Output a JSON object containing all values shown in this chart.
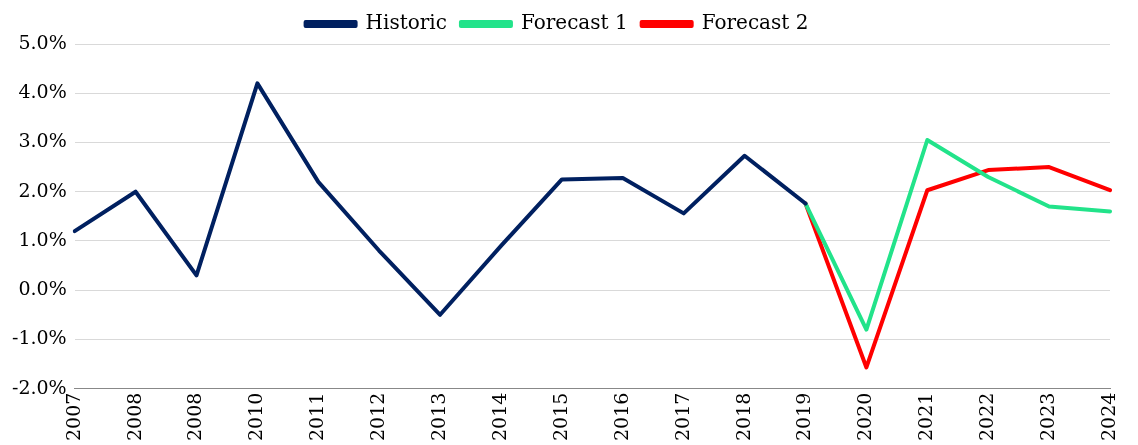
{
  "chart_data": {
    "type": "line",
    "categories": [
      "2007",
      "2008",
      "2008",
      "2010",
      "2011",
      "2012",
      "2013",
      "2014",
      "2015",
      "2016",
      "2017",
      "2018",
      "2019",
      "2020",
      "2021",
      "2022",
      "2023",
      "2024"
    ],
    "series": [
      {
        "name": "Historic",
        "color": "#002060",
        "values": [
          1.2,
          2.0,
          0.3,
          4.2,
          2.2,
          0.8,
          -0.5,
          0.9,
          2.25,
          2.28,
          1.56,
          2.73,
          1.76,
          null,
          null,
          null,
          null,
          null
        ]
      },
      {
        "name": "Forecast 1",
        "color": "#22e38a",
        "values": [
          null,
          null,
          null,
          null,
          null,
          null,
          null,
          null,
          null,
          null,
          null,
          null,
          1.76,
          -0.8,
          3.05,
          2.3,
          1.7,
          1.6
        ]
      },
      {
        "name": "Forecast 2",
        "color": "#ff0000",
        "values": [
          null,
          null,
          null,
          null,
          null,
          null,
          null,
          null,
          null,
          null,
          null,
          null,
          1.76,
          -1.57,
          2.03,
          2.44,
          2.5,
          2.03
        ]
      }
    ],
    "ylim": [
      -2,
      5
    ],
    "yticks": [
      {
        "value": -2,
        "label": "-2.0%"
      },
      {
        "value": -1,
        "label": "-1.0%"
      },
      {
        "value": 0,
        "label": "0.0%"
      },
      {
        "value": 1,
        "label": "1.0%"
      },
      {
        "value": 2,
        "label": "2.0%"
      },
      {
        "value": 3,
        "label": "3.0%"
      },
      {
        "value": 4,
        "label": "4.0%"
      },
      {
        "value": 5,
        "label": "5.0%"
      }
    ],
    "grid": "y",
    "legend": "top",
    "marker": "none",
    "line_style": "solid"
  }
}
